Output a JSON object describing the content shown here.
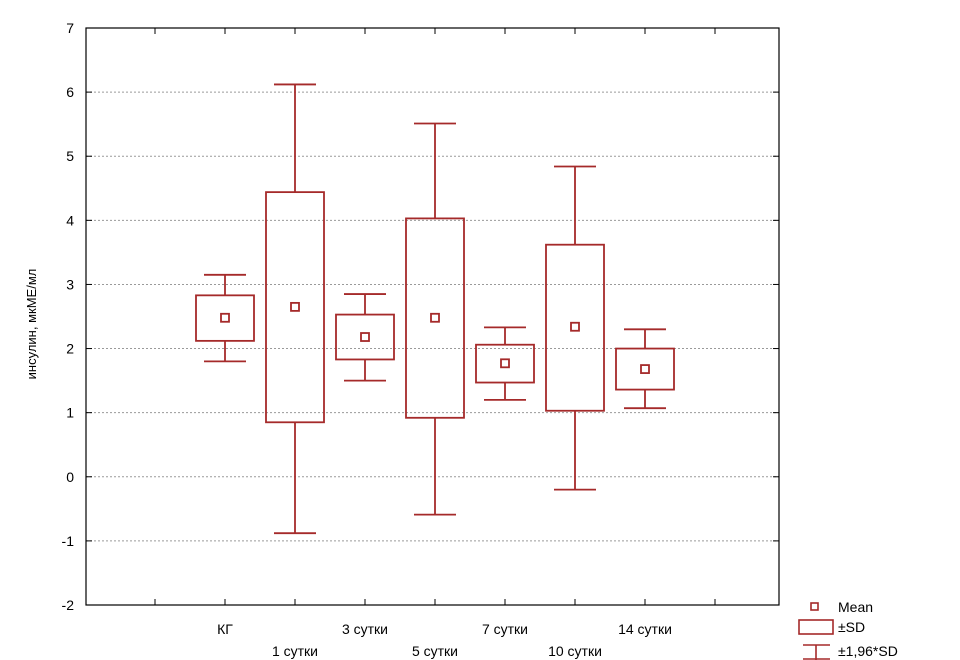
{
  "chart_data": {
    "type": "box",
    "title": "",
    "xlabel": "",
    "ylabel": "инсулин, мкМЕ/мл",
    "ylim": [
      -2,
      7
    ],
    "yticks": [
      -2,
      -1,
      0,
      1,
      2,
      3,
      4,
      5,
      6,
      7
    ],
    "grid": "horizontal dotted",
    "legend_position": "bottom-right",
    "colors": {
      "box": "#a52a2a",
      "grid": "#9a9a9a",
      "axis": "#000000",
      "background": "#ffffff"
    },
    "categories": [
      "КГ",
      "1 сутки",
      "3 сутки",
      "5 сутки",
      "7 сутки",
      "10 сутки",
      "14 сутки"
    ],
    "series": [
      {
        "category": "КГ",
        "mean": 2.48,
        "sd_low": 2.12,
        "sd_high": 2.83,
        "ci_low": 1.8,
        "ci_high": 3.15
      },
      {
        "category": "1 сутки",
        "mean": 2.65,
        "sd_low": 0.85,
        "sd_high": 4.44,
        "ci_low": -0.88,
        "ci_high": 6.12
      },
      {
        "category": "3 сутки",
        "mean": 2.18,
        "sd_low": 1.83,
        "sd_high": 2.53,
        "ci_low": 1.5,
        "ci_high": 2.85
      },
      {
        "category": "5 сутки",
        "mean": 2.48,
        "sd_low": 0.92,
        "sd_high": 4.03,
        "ci_low": -0.59,
        "ci_high": 5.51
      },
      {
        "category": "7 сутки",
        "mean": 1.77,
        "sd_low": 1.47,
        "sd_high": 2.06,
        "ci_low": 1.2,
        "ci_high": 2.33
      },
      {
        "category": "10 сутки",
        "mean": 2.34,
        "sd_low": 1.03,
        "sd_high": 3.62,
        "ci_low": -0.2,
        "ci_high": 4.84
      },
      {
        "category": "14 сутки",
        "mean": 1.68,
        "sd_low": 1.36,
        "sd_high": 2.0,
        "ci_low": 1.07,
        "ci_high": 2.3
      }
    ],
    "legend": [
      {
        "symbol": "mean",
        "label": "Mean"
      },
      {
        "symbol": "box",
        "label": "±SD"
      },
      {
        "symbol": "whisker",
        "label": "±1,96*SD"
      }
    ]
  }
}
